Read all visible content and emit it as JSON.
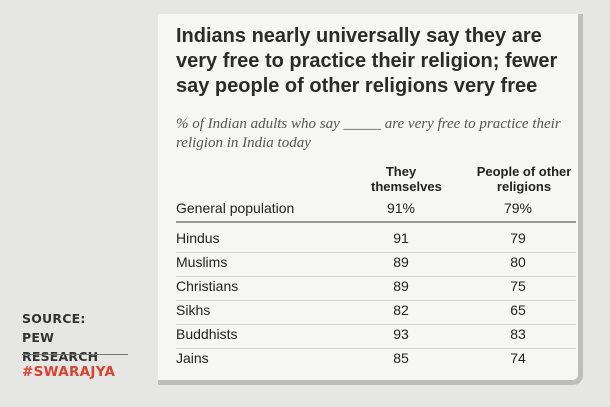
{
  "chart_data": {
    "type": "table",
    "title": "Indians nearly universally say they are very free to practice their religion; fewer say people of other religions very free",
    "subtitle": "% of Indian adults who say _____ are very free to practice their religion in India today",
    "columns": [
      "They themselves",
      "People of other religions"
    ],
    "general": {
      "label": "General population",
      "values": [
        "91%",
        "79%"
      ]
    },
    "rows": [
      {
        "label": "Hindus",
        "values": [
          91,
          79
        ]
      },
      {
        "label": "Muslims",
        "values": [
          89,
          80
        ]
      },
      {
        "label": "Christians",
        "values": [
          89,
          75
        ]
      },
      {
        "label": "Sikhs",
        "values": [
          82,
          65
        ]
      },
      {
        "label": "Buddhists",
        "values": [
          93,
          83
        ]
      },
      {
        "label": "Jains",
        "values": [
          85,
          74
        ]
      }
    ]
  },
  "footer": {
    "source_line1": "SOURCE:",
    "source_line2": "PEW RESEARCH",
    "brand": "#SWARAJYA",
    "brand_color": "#d9412f"
  }
}
